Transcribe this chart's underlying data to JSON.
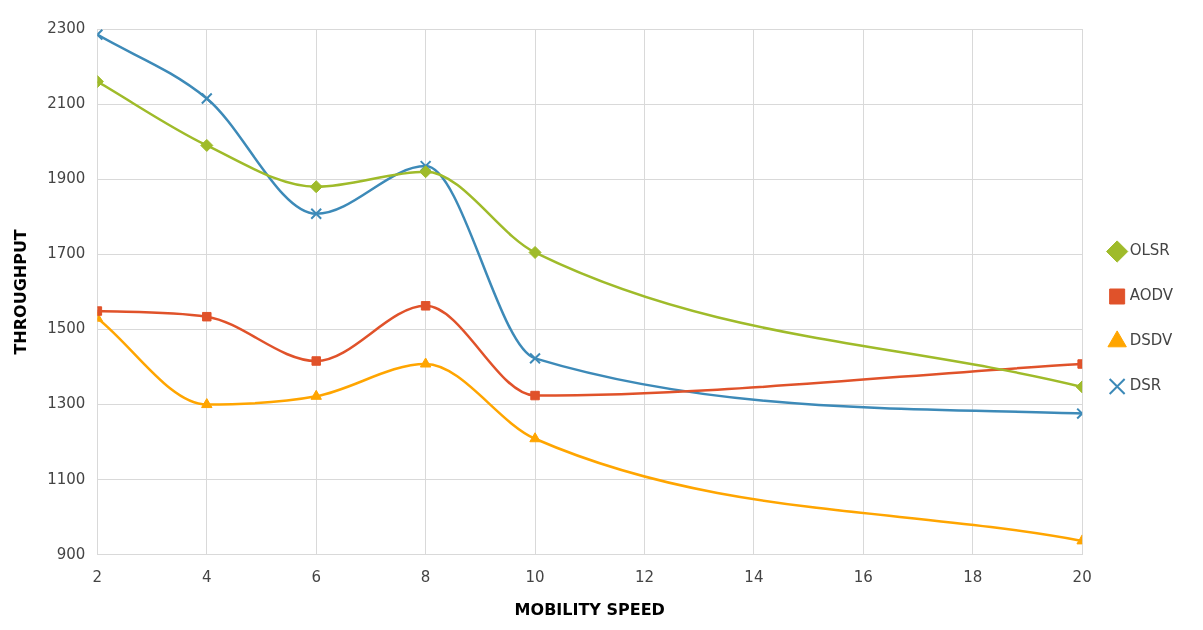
{
  "chart_data": {
    "type": "line",
    "xlabel": "MOBILITY SPEED",
    "ylabel": "THROUGHPUT",
    "x": [
      2,
      4,
      6,
      8,
      10,
      20
    ],
    "xlim": [
      2,
      20
    ],
    "xticks": [
      2,
      4,
      6,
      8,
      10,
      12,
      14,
      16,
      18,
      20
    ],
    "ylim": [
      900,
      2300
    ],
    "yticks": [
      900,
      1100,
      1300,
      1500,
      1700,
      1900,
      2100,
      2300
    ],
    "grid": true,
    "legend": "right",
    "line_style": "solid",
    "series": [
      {
        "name": "OLSR",
        "color": "#9fbb2a",
        "marker": "diamond",
        "values": [
          2160,
          1990,
          1880,
          1920,
          1705,
          1347
        ]
      },
      {
        "name": "AODV",
        "color": "#e0522a",
        "marker": "square",
        "values": [
          1549,
          1534,
          1416,
          1563,
          1324,
          1408
        ]
      },
      {
        "name": "DSDV",
        "color": "#ffa500",
        "marker": "triangle",
        "values": [
          1530,
          1300,
          1322,
          1408,
          1209,
          937
        ]
      },
      {
        "name": "DSR",
        "color": "#3d8ab8",
        "marker": "cross",
        "values": [
          2285,
          2115,
          1808,
          1935,
          1423,
          1276
        ]
      }
    ]
  }
}
